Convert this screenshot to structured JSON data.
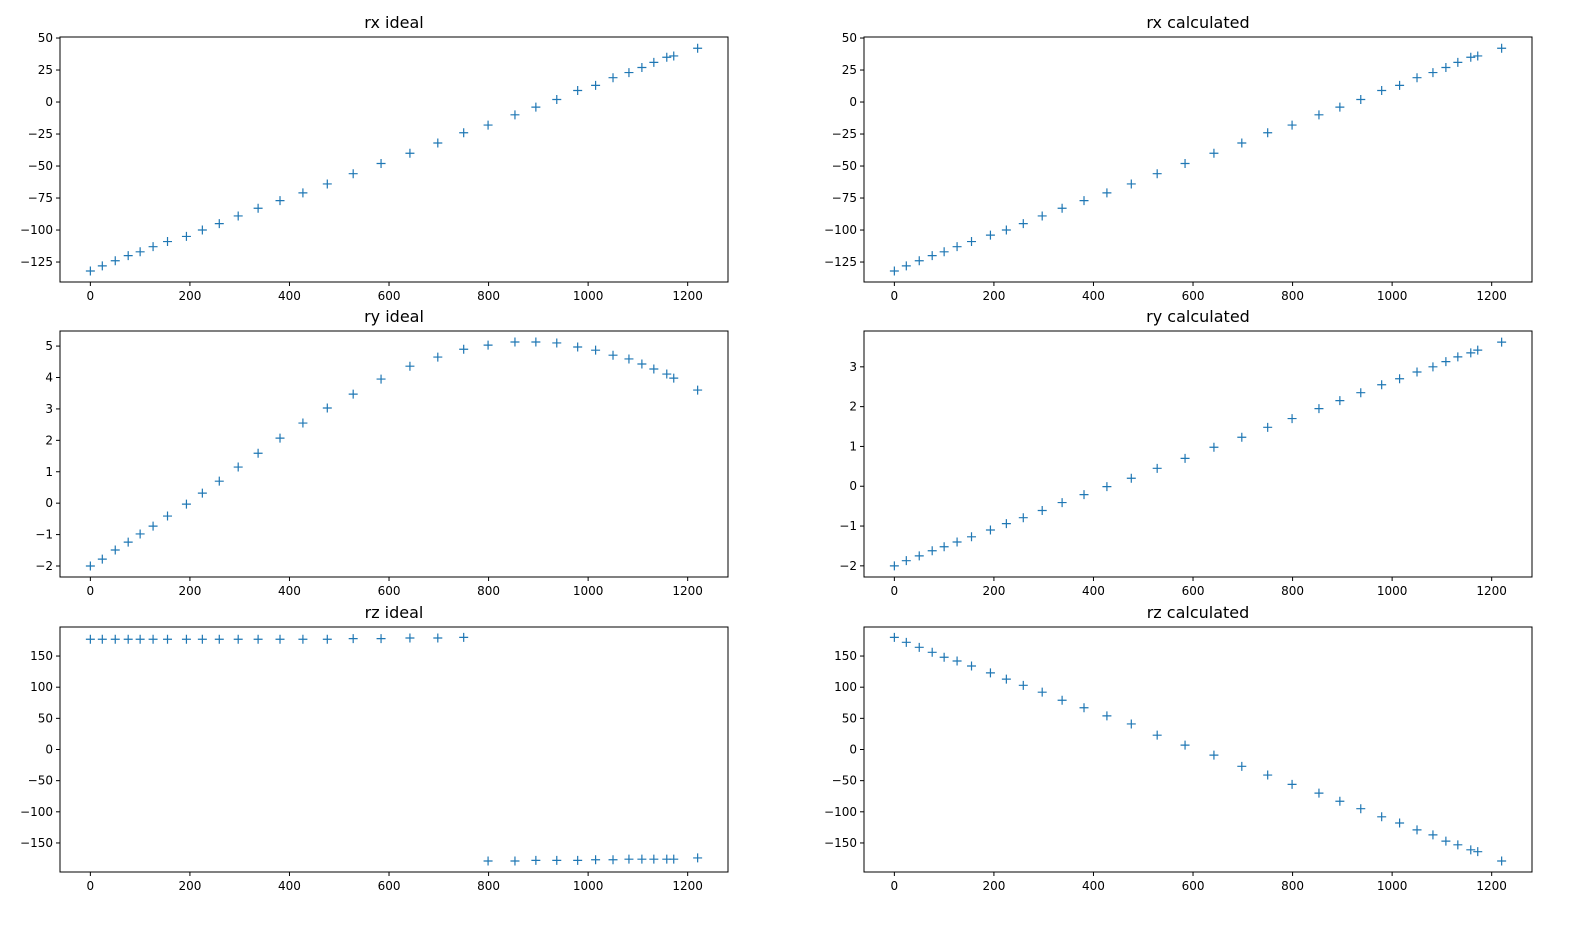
{
  "marker_color": "#1f77b4",
  "chart_data": [
    {
      "type": "scatter",
      "title": "rx ideal",
      "xlim": [
        -61,
        1281
      ],
      "ylim": [
        -140.6,
        50.8
      ],
      "xticks": [
        0,
        200,
        400,
        600,
        800,
        1000,
        1200
      ],
      "yticks": [
        -125,
        -100,
        -75,
        -50,
        -25,
        0,
        25,
        50
      ],
      "marker": "+",
      "grid": false,
      "x": [
        0,
        24,
        50,
        76,
        100,
        126,
        155,
        193,
        225,
        259,
        297,
        337,
        381,
        427,
        476,
        528,
        584,
        642,
        698,
        750,
        799,
        853,
        895,
        937,
        979,
        1015,
        1050,
        1082,
        1108,
        1132,
        1158,
        1172,
        1220
      ],
      "y": [
        -132,
        -128,
        -124,
        -120,
        -117,
        -113,
        -109,
        -105,
        -100,
        -95,
        -89,
        -83,
        -77,
        -71,
        -64,
        -56,
        -48,
        -40,
        -32,
        -24,
        -18,
        -10,
        -4,
        2,
        9,
        13,
        19,
        23,
        27,
        31,
        35,
        36,
        42
      ]
    },
    {
      "type": "scatter",
      "title": "rx calculated",
      "xlim": [
        -61,
        1281
      ],
      "ylim": [
        -140.6,
        50.8
      ],
      "xticks": [
        0,
        200,
        400,
        600,
        800,
        1000,
        1200
      ],
      "yticks": [
        -125,
        -100,
        -75,
        -50,
        -25,
        0,
        25,
        50
      ],
      "marker": "+",
      "grid": false,
      "x": [
        0,
        24,
        50,
        76,
        100,
        126,
        155,
        193,
        225,
        259,
        297,
        337,
        381,
        427,
        476,
        528,
        584,
        642,
        698,
        750,
        799,
        853,
        895,
        937,
        979,
        1015,
        1050,
        1082,
        1108,
        1132,
        1158,
        1172,
        1220
      ],
      "y": [
        -132,
        -128,
        -124,
        -120,
        -117,
        -113,
        -109,
        -104,
        -100,
        -95,
        -89,
        -83,
        -77,
        -71,
        -64,
        -56,
        -48,
        -40,
        -32,
        -24,
        -18,
        -10,
        -4,
        2,
        9,
        13,
        19,
        23,
        27,
        31,
        35,
        36,
        42
      ]
    },
    {
      "type": "scatter",
      "title": "ry ideal",
      "xlim": [
        -61,
        1281
      ],
      "ylim": [
        -2.35,
        5.48
      ],
      "xticks": [
        0,
        200,
        400,
        600,
        800,
        1000,
        1200
      ],
      "yticks": [
        -2,
        -1,
        0,
        1,
        2,
        3,
        4,
        5
      ],
      "marker": "+",
      "grid": false,
      "x": [
        0,
        24,
        50,
        76,
        100,
        126,
        155,
        193,
        225,
        259,
        297,
        337,
        381,
        427,
        476,
        528,
        584,
        642,
        698,
        750,
        799,
        853,
        895,
        937,
        979,
        1015,
        1050,
        1082,
        1108,
        1132,
        1158,
        1172,
        1220
      ],
      "y": [
        -2,
        -1.78,
        -1.49,
        -1.24,
        -0.98,
        -0.73,
        -0.41,
        -0.03,
        0.32,
        0.7,
        1.15,
        1.59,
        2.07,
        2.55,
        3.03,
        3.47,
        3.95,
        4.36,
        4.65,
        4.9,
        5.03,
        5.13,
        5.13,
        5.1,
        4.97,
        4.87,
        4.71,
        4.59,
        4.43,
        4.27,
        4.11,
        3.98,
        3.6
      ]
    },
    {
      "type": "scatter",
      "title": "ry calculated",
      "xlim": [
        -61,
        1281
      ],
      "ylim": [
        -2.28,
        3.9
      ],
      "xticks": [
        0,
        200,
        400,
        600,
        800,
        1000,
        1200
      ],
      "yticks": [
        -2,
        -1,
        0,
        1,
        2,
        3
      ],
      "marker": "+",
      "grid": false,
      "x": [
        0,
        24,
        50,
        76,
        100,
        126,
        155,
        193,
        225,
        259,
        297,
        337,
        381,
        427,
        476,
        528,
        584,
        642,
        698,
        750,
        799,
        853,
        895,
        937,
        979,
        1015,
        1050,
        1082,
        1108,
        1132,
        1158,
        1172,
        1220
      ],
      "y": [
        -2,
        -1.87,
        -1.75,
        -1.62,
        -1.52,
        -1.4,
        -1.27,
        -1.1,
        -0.94,
        -0.79,
        -0.61,
        -0.41,
        -0.21,
        -0.01,
        0.2,
        0.45,
        0.7,
        0.98,
        1.23,
        1.48,
        1.7,
        1.95,
        2.15,
        2.35,
        2.55,
        2.7,
        2.87,
        3.0,
        3.13,
        3.25,
        3.35,
        3.42,
        3.62
      ]
    },
    {
      "type": "scatter",
      "title": "rz ideal",
      "xlim": [
        -61,
        1281
      ],
      "ylim": [
        -196.6,
        196.6
      ],
      "xticks": [
        0,
        200,
        400,
        600,
        800,
        1000,
        1200
      ],
      "yticks": [
        -150,
        -100,
        -50,
        0,
        50,
        100,
        150
      ],
      "marker": "+",
      "grid": false,
      "x": [
        0,
        24,
        50,
        76,
        100,
        126,
        155,
        193,
        225,
        259,
        297,
        337,
        381,
        427,
        476,
        528,
        584,
        642,
        698,
        750,
        799,
        853,
        895,
        937,
        979,
        1015,
        1050,
        1082,
        1108,
        1132,
        1158,
        1172,
        1220
      ],
      "y": [
        177,
        177,
        177,
        177,
        177,
        177,
        177,
        177,
        177,
        177,
        177,
        177,
        177,
        177,
        177,
        178,
        178,
        179,
        179,
        180,
        -179,
        -179,
        -178,
        -178,
        -178,
        -177,
        -177,
        -176,
        -176,
        -176,
        -176,
        -176,
        -174
      ]
    },
    {
      "type": "scatter",
      "title": "rz calculated",
      "xlim": [
        -61,
        1281
      ],
      "ylim": [
        -196.6,
        196.6
      ],
      "xticks": [
        0,
        200,
        400,
        600,
        800,
        1000,
        1200
      ],
      "yticks": [
        -150,
        -100,
        -50,
        0,
        50,
        100,
        150
      ],
      "marker": "+",
      "grid": false,
      "x": [
        0,
        24,
        50,
        76,
        100,
        126,
        155,
        193,
        225,
        259,
        297,
        337,
        381,
        427,
        476,
        528,
        584,
        642,
        698,
        750,
        799,
        853,
        895,
        937,
        979,
        1015,
        1050,
        1082,
        1108,
        1132,
        1158,
        1172,
        1220
      ],
      "y": [
        180,
        172,
        164,
        156,
        148,
        142,
        134,
        123,
        113,
        103,
        92,
        79,
        67,
        54,
        41,
        23,
        7,
        -9,
        -27,
        -41,
        -56,
        -70,
        -83,
        -95,
        -108,
        -118,
        -129,
        -137,
        -147,
        -153,
        -161,
        -164,
        -179
      ]
    }
  ]
}
